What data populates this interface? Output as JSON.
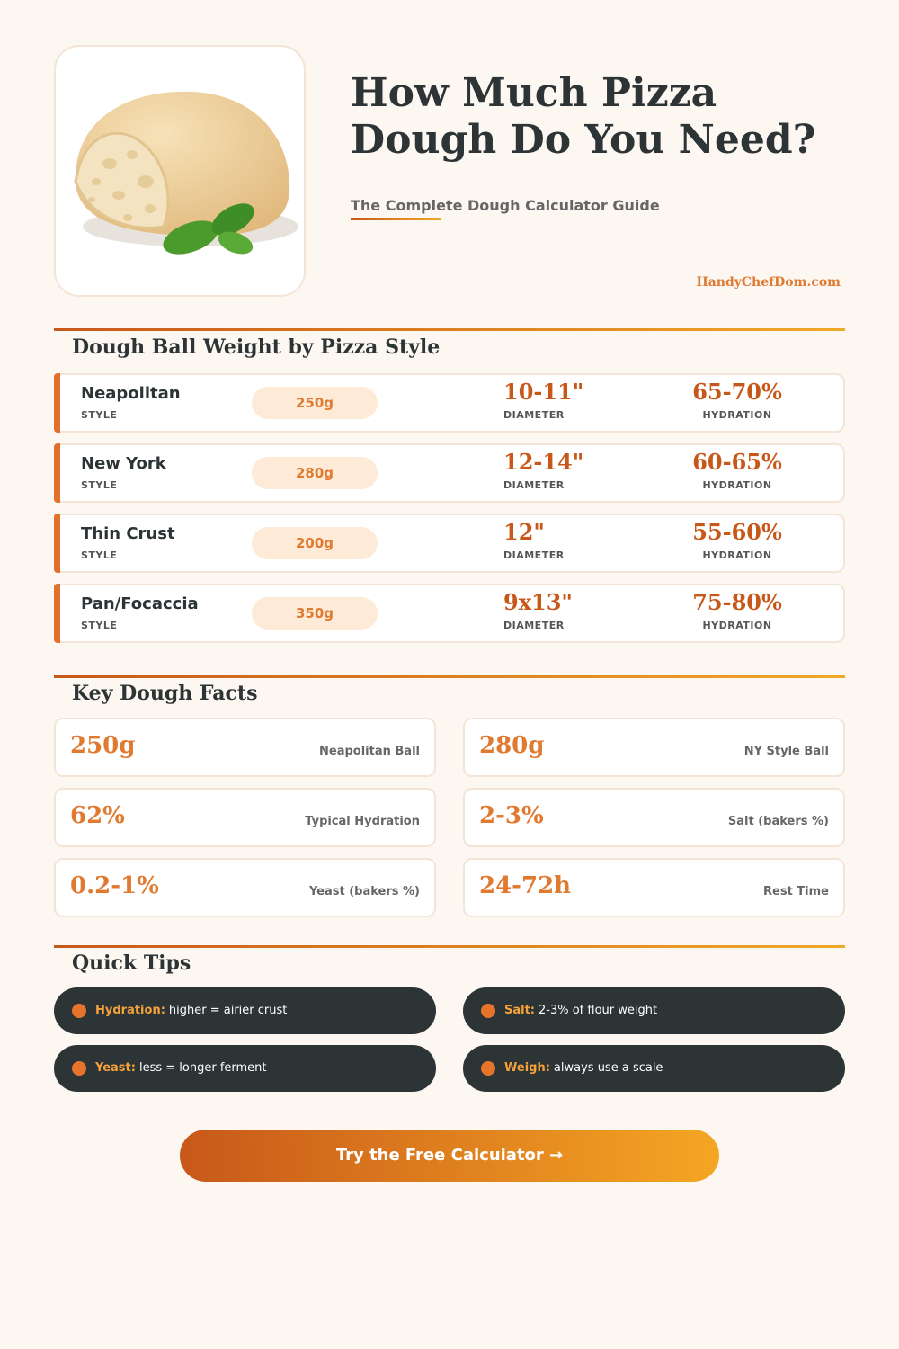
{
  "header": {
    "title_lines": [
      "How Much Pizza",
      "Dough Do You Need?"
    ],
    "subtitle": "The Complete Dough Calculator Guide",
    "site": "HandyChefDom.com"
  },
  "styles_section": {
    "heading": "Dough Ball Weight by Pizza Style",
    "column_labels": {
      "style": "STYLE",
      "diameter": "DIAMETER",
      "hydration": "HYDRATION"
    },
    "rows": [
      {
        "name": "Neapolitan",
        "weight": "250g",
        "diameter": "10-11\"",
        "hydration": "65-70%"
      },
      {
        "name": "New York",
        "weight": "280g",
        "diameter": "12-14\"",
        "hydration": "60-65%"
      },
      {
        "name": "Thin Crust",
        "weight": "200g",
        "diameter": "12\"",
        "hydration": "55-60%"
      },
      {
        "name": "Pan/Focaccia",
        "weight": "350g",
        "diameter": "9x13\"",
        "hydration": "75-80%"
      }
    ]
  },
  "facts_section": {
    "heading": "Key Dough Facts",
    "facts": [
      {
        "value": "250g",
        "label": "Neapolitan Ball"
      },
      {
        "value": "280g",
        "label": "NY Style Ball"
      },
      {
        "value": "62%",
        "label": "Typical Hydration"
      },
      {
        "value": "2-3%",
        "label": "Salt (bakers %)"
      },
      {
        "value": "0.2-1%",
        "label": "Yeast (bakers %)"
      },
      {
        "value": "24-72h",
        "label": "Rest Time"
      }
    ]
  },
  "tips_section": {
    "heading": "Quick Tips",
    "tips": [
      {
        "label": "Hydration:",
        "text": "higher = airier crust"
      },
      {
        "label": "Salt:",
        "text": "2-3% of flour weight"
      },
      {
        "label": "Yeast:",
        "text": "less = longer ferment"
      },
      {
        "label": "Weigh:",
        "text": "always use a scale"
      }
    ]
  },
  "cta": "Try the Free Calculator →"
}
